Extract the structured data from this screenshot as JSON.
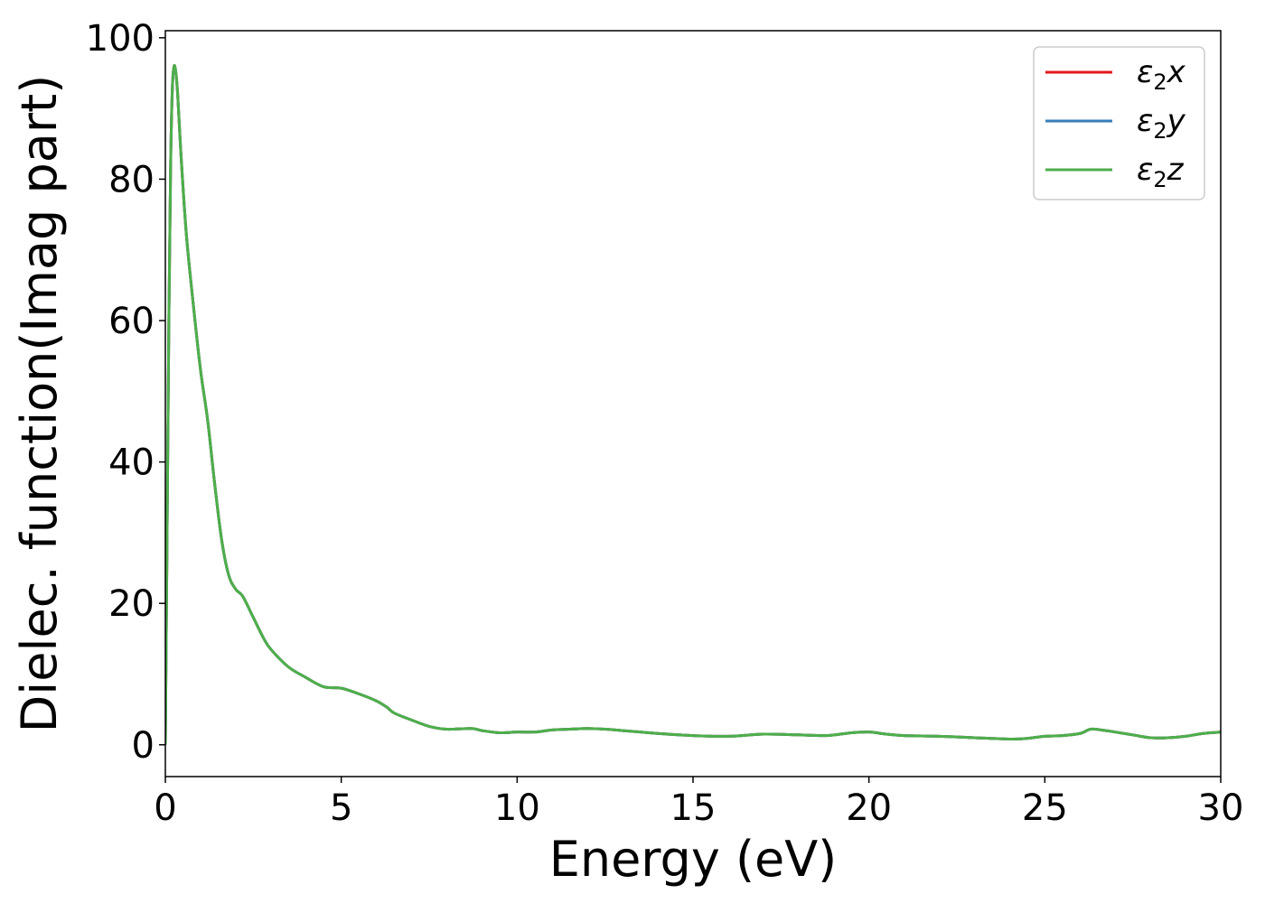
{
  "chart_data": {
    "type": "line",
    "title": "",
    "xlabel": "Energy (eV)",
    "ylabel": "Dielec. function(Imag part)",
    "xlim": [
      0,
      30
    ],
    "ylim": [
      -4.5,
      101
    ],
    "xticks": [
      0,
      5,
      10,
      15,
      20,
      25,
      30
    ],
    "yticks": [
      0,
      20,
      40,
      60,
      80,
      100
    ],
    "grid": false,
    "legend_position": "top-right",
    "x": [
      0,
      0.05,
      0.1,
      0.15,
      0.2,
      0.25,
      0.3,
      0.35,
      0.45,
      0.6,
      0.8,
      1.0,
      1.2,
      1.4,
      1.6,
      1.8,
      2.0,
      2.2,
      2.5,
      2.8,
      3.0,
      3.5,
      4.0,
      4.5,
      5.0,
      5.5,
      6.0,
      6.3,
      6.5,
      7.0,
      7.5,
      8.0,
      8.7,
      9.0,
      9.5,
      10.0,
      10.5,
      11.0,
      11.5,
      12.0,
      12.5,
      13.0,
      13.5,
      14.0,
      15.0,
      16.0,
      17.0,
      18.0,
      18.8,
      19.5,
      20.0,
      20.5,
      21.0,
      22.0,
      23.0,
      24.0,
      24.5,
      25.0,
      25.5,
      26.0,
      26.3,
      26.6,
      27.0,
      27.5,
      28.0,
      28.5,
      29.0,
      29.5,
      30.0
    ],
    "series": [
      {
        "name": "ε₂x",
        "label_main": "ε",
        "label_sub": "2",
        "label_axis": "x",
        "color": "#e41a1c",
        "values": [
          0,
          30,
          60,
          82,
          93,
          96,
          95,
          92,
          83,
          72,
          62,
          53,
          46,
          37,
          29,
          24,
          22,
          21,
          18,
          15,
          13.5,
          11,
          9.5,
          8.2,
          8,
          7.2,
          6.2,
          5.3,
          4.5,
          3.5,
          2.6,
          2.2,
          2.3,
          2.0,
          1.7,
          1.8,
          1.8,
          2.1,
          2.2,
          2.3,
          2.2,
          2.0,
          1.8,
          1.6,
          1.3,
          1.2,
          1.5,
          1.4,
          1.3,
          1.7,
          1.8,
          1.5,
          1.3,
          1.2,
          1.0,
          0.8,
          0.9,
          1.2,
          1.3,
          1.6,
          2.2,
          2.1,
          1.8,
          1.4,
          1.0,
          1.0,
          1.2,
          1.6,
          1.8
        ]
      },
      {
        "name": "ε₂y",
        "label_main": "ε",
        "label_sub": "2",
        "label_axis": "y",
        "color": "#377eb8",
        "values": [
          0,
          30,
          60,
          82,
          93,
          96,
          95,
          92,
          83,
          72,
          62,
          53,
          46,
          37,
          29,
          24,
          22,
          21,
          18,
          15,
          13.5,
          11,
          9.5,
          8.2,
          8,
          7.2,
          6.2,
          5.3,
          4.5,
          3.5,
          2.6,
          2.2,
          2.3,
          2.0,
          1.7,
          1.8,
          1.8,
          2.1,
          2.2,
          2.3,
          2.2,
          2.0,
          1.8,
          1.6,
          1.3,
          1.2,
          1.5,
          1.4,
          1.3,
          1.7,
          1.8,
          1.5,
          1.3,
          1.2,
          1.0,
          0.8,
          0.9,
          1.2,
          1.3,
          1.6,
          2.2,
          2.1,
          1.8,
          1.4,
          1.0,
          1.0,
          1.2,
          1.6,
          1.8
        ]
      },
      {
        "name": "ε₂z",
        "label_main": "ε",
        "label_sub": "2",
        "label_axis": "z",
        "color": "#4daf4a",
        "values": [
          0,
          30,
          60,
          82,
          93,
          96,
          95,
          92,
          83,
          72,
          62,
          53,
          46,
          37,
          29,
          24,
          22,
          21,
          18,
          15,
          13.5,
          11,
          9.5,
          8.2,
          8,
          7.2,
          6.2,
          5.3,
          4.5,
          3.5,
          2.6,
          2.2,
          2.3,
          2.0,
          1.7,
          1.8,
          1.8,
          2.1,
          2.2,
          2.3,
          2.2,
          2.0,
          1.8,
          1.6,
          1.3,
          1.2,
          1.5,
          1.4,
          1.3,
          1.7,
          1.8,
          1.5,
          1.3,
          1.2,
          1.0,
          0.8,
          0.9,
          1.2,
          1.3,
          1.6,
          2.2,
          2.1,
          1.8,
          1.4,
          1.0,
          1.0,
          1.2,
          1.6,
          1.8
        ]
      }
    ]
  }
}
